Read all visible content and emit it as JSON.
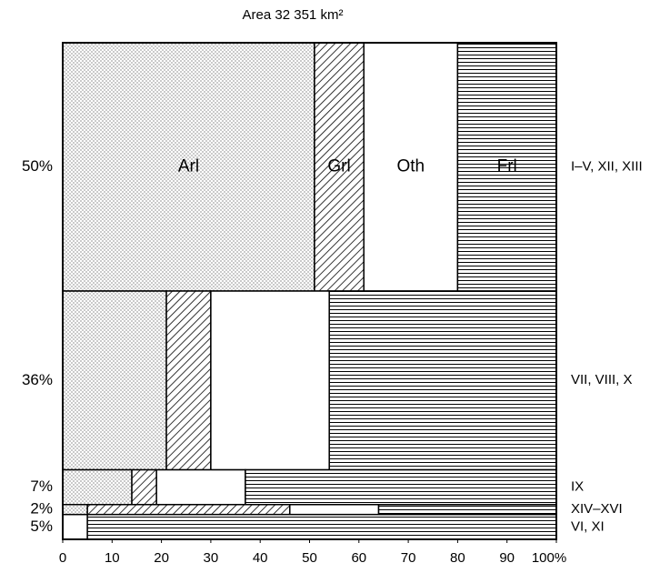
{
  "chart_data": {
    "type": "mosaic",
    "title": "Area 32 351 km²",
    "categories": [
      "I–V, XII, XIII",
      "VII, VIII, X",
      "IX",
      "XIV–XVI",
      "VI, XI"
    ],
    "row_shares": [
      50,
      36,
      7,
      2,
      5
    ],
    "row_share_labels": [
      "50%",
      "36%",
      "7%",
      "2%",
      "5%"
    ],
    "series": [
      {
        "name": "Arl",
        "pattern": "dots",
        "values": [
          51,
          21,
          14,
          5,
          0
        ]
      },
      {
        "name": "Grl",
        "pattern": "diagonal",
        "values": [
          10,
          9,
          5,
          41,
          0
        ]
      },
      {
        "name": "Oth",
        "pattern": "white",
        "values": [
          19,
          24,
          18,
          18,
          5
        ]
      },
      {
        "name": "Frl",
        "pattern": "horizontal",
        "values": [
          20,
          46,
          63,
          36,
          95
        ]
      }
    ],
    "xlim": [
      0,
      100
    ],
    "xticks": [
      0,
      10,
      20,
      30,
      40,
      50,
      60,
      70,
      80,
      90,
      {
        "value": 100,
        "label": "100%"
      }
    ]
  }
}
